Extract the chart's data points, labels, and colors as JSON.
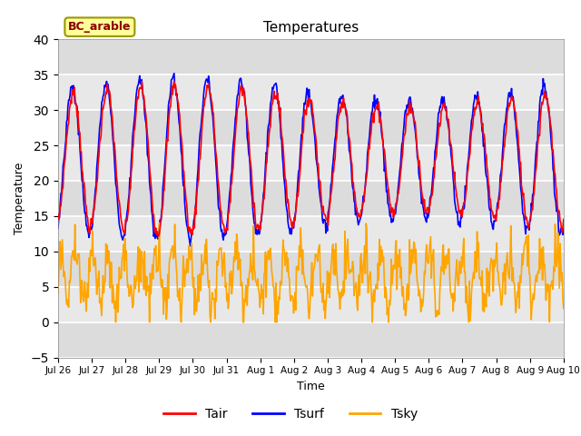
{
  "title": "Temperatures",
  "xlabel": "Time",
  "ylabel": "Temperature",
  "ylim": [
    -5,
    40
  ],
  "annotation": "BC_arable",
  "tair_color": "#FF0000",
  "tsurf_color": "#0000FF",
  "tsky_color": "#FFA500",
  "fig_bg": "#FFFFFF",
  "plot_bg": "#E8E8E8",
  "legend_labels": [
    "Tair",
    "Tsurf",
    "Tsky"
  ],
  "tick_labels": [
    "Jul 26",
    "Jul 27",
    "Jul 28",
    "Jul 29",
    "Jul 30",
    "Jul 31",
    "Aug 1",
    "Aug 2",
    "Aug 3",
    "Aug 4",
    "Aug 5",
    "Aug 6",
    "Aug 7",
    "Aug 8",
    "Aug 9",
    "Aug 10"
  ],
  "yticks": [
    -5,
    0,
    5,
    10,
    15,
    20,
    25,
    30,
    35,
    40
  ],
  "n_points": 720,
  "days": 15
}
